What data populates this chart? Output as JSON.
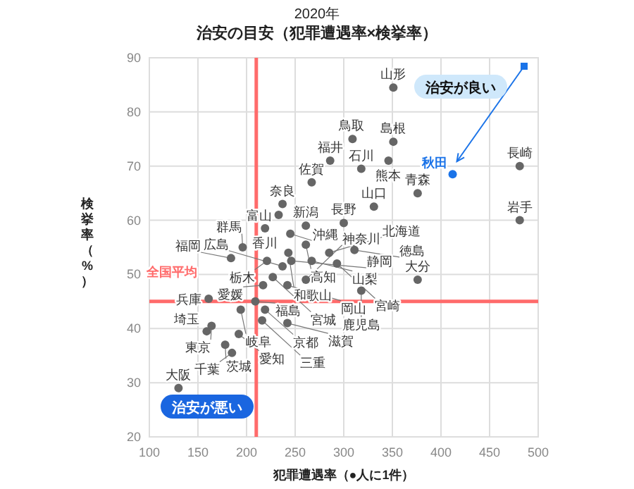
{
  "chart_data": {
    "type": "scatter",
    "subtitle": "2020年",
    "title": "治安の目安（犯罪遭遇率×検挙率）",
    "xlabel": "犯罪遭遇率（●人に1件）",
    "ylabel": "検挙率（%）",
    "xlim": [
      100,
      500
    ],
    "ylim": [
      20,
      90
    ],
    "xticks": [
      100,
      150,
      200,
      250,
      300,
      350,
      400,
      450,
      500
    ],
    "yticks": [
      20,
      30,
      40,
      50,
      60,
      70,
      80,
      90
    ],
    "grid": true,
    "marker": "circle",
    "series": [
      {
        "color": "#666666",
        "x": [
          351,
          309,
          351,
          286,
          318,
          346,
          267,
          237,
          331,
          233,
          300,
          219,
          245,
          261,
          261,
          376,
          481,
          481,
          376,
          243,
          221,
          227,
          217,
          194,
          161,
          164,
          159,
          192,
          219,
          216,
          242,
          178,
          185,
          130,
          242,
          237,
          246,
          209,
          267,
          261,
          285,
          293,
          311,
          318,
          196,
          184
        ],
        "values": [
          84.5,
          75,
          74.5,
          71,
          69.5,
          71,
          67,
          63,
          62.5,
          61,
          59.5,
          58.5,
          57.5,
          59,
          55.5,
          65,
          70,
          60,
          49,
          54,
          52.5,
          49.5,
          48,
          43.5,
          45.5,
          40.5,
          39.5,
          39,
          43.5,
          41.5,
          41,
          37,
          35.5,
          29,
          48,
          51.5,
          52.5,
          45,
          52.5,
          49,
          54,
          52,
          54.5,
          47,
          55,
          53
        ]
      },
      {
        "name": "秋田",
        "color": "#1a73e8",
        "x": [
          412
        ],
        "values": [
          68.5
        ]
      }
    ],
    "annotations": [
      {
        "text": "山形",
        "x": 351,
        "y": 84.5
      },
      {
        "text": "鳥取",
        "x": 309,
        "y": 75
      },
      {
        "text": "島根",
        "x": 351,
        "y": 74.5
      },
      {
        "text": "福井",
        "x": 286,
        "y": 71
      },
      {
        "text": "石川",
        "x": 318,
        "y": 69.5
      },
      {
        "text": "熊本",
        "x": 346,
        "y": 71
      },
      {
        "text": "佐賀",
        "x": 267,
        "y": 67
      },
      {
        "text": "奈良",
        "x": 237,
        "y": 63
      },
      {
        "text": "山口",
        "x": 331,
        "y": 62.5
      },
      {
        "text": "富山",
        "x": 233,
        "y": 61
      },
      {
        "text": "長野",
        "x": 300,
        "y": 59.5
      },
      {
        "text": "香川",
        "x": 219,
        "y": 58.5
      },
      {
        "text": "沖縄",
        "x": 245,
        "y": 57.5
      },
      {
        "text": "新潟",
        "x": 261,
        "y": 59
      },
      {
        "text": "高知",
        "x": 261,
        "y": 55.5
      },
      {
        "text": "青森",
        "x": 376,
        "y": 65
      },
      {
        "text": "長崎",
        "x": 481,
        "y": 70
      },
      {
        "text": "岩手",
        "x": 481,
        "y": 60
      },
      {
        "text": "大分",
        "x": 376,
        "y": 49
      },
      {
        "text": "和歌山",
        "x": 243,
        "y": 54
      },
      {
        "text": "栃木",
        "x": 221,
        "y": 52.5
      },
      {
        "text": "宮城",
        "x": 227,
        "y": 49.5
      },
      {
        "text": "愛媛",
        "x": 217,
        "y": 48
      },
      {
        "text": "岐阜",
        "x": 194,
        "y": 43.5
      },
      {
        "text": "兵庫",
        "x": 161,
        "y": 45.5
      },
      {
        "text": "東京",
        "x": 164,
        "y": 40.5
      },
      {
        "text": "埼玉",
        "x": 159,
        "y": 39.5
      },
      {
        "text": "愛知",
        "x": 192,
        "y": 39
      },
      {
        "text": "京都",
        "x": 219,
        "y": 43.5
      },
      {
        "text": "三重",
        "x": 216,
        "y": 41.5
      },
      {
        "text": "滋賀",
        "x": 242,
        "y": 41
      },
      {
        "text": "茨城",
        "x": 178,
        "y": 37
      },
      {
        "text": "千葉",
        "x": 185,
        "y": 35.5
      },
      {
        "text": "大阪",
        "x": 130,
        "y": 29
      },
      {
        "text": "岡山",
        "x": 242,
        "y": 48
      },
      {
        "text": "広島",
        "x": 237,
        "y": 51.5
      },
      {
        "text": "静岡",
        "x": 246,
        "y": 52.5
      },
      {
        "text": "福島",
        "x": 209,
        "y": 45
      },
      {
        "text": "山梨",
        "x": 267,
        "y": 52.5
      },
      {
        "text": "神奈川",
        "x": 261,
        "y": 49
      },
      {
        "text": "北海道",
        "x": 285,
        "y": 54
      },
      {
        "text": "宮崎",
        "x": 293,
        "y": 52
      },
      {
        "text": "徳島",
        "x": 311,
        "y": 54.5
      },
      {
        "text": "鹿児島",
        "x": 318,
        "y": 47
      },
      {
        "text": "群馬",
        "x": 196,
        "y": 55
      },
      {
        "text": "福岡",
        "x": 184,
        "y": 53
      },
      "治安が良い",
      "治安が悪い"
    ],
    "ref_lines": [
      {
        "axis": "x",
        "value": 210,
        "color": "#ff6b6b"
      },
      {
        "axis": "y",
        "value": 45,
        "label": "全国平均",
        "color": "#ff6b6b"
      }
    ]
  }
}
